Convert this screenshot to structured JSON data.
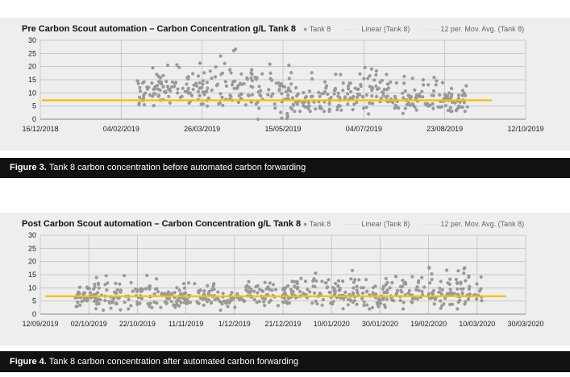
{
  "charts": [
    {
      "title": "Pre Carbon Scout automation – Carbon Concentration g/L Tank 8",
      "legend": {
        "series": "Tank 8",
        "linear": "Linear (Tank 8)",
        "mavg": "12 per. Mov. Avg. (Tank 8)"
      },
      "caption_label": "Figure 3.",
      "caption_text": "Tank 8 carbon concentration before automated carbon forwarding"
    },
    {
      "title": "Post Carbon Scout automation – Carbon Concentration g/L Tank 8",
      "legend": {
        "series": "Tank 8",
        "linear": "Linear (Tank 8)",
        "mavg": "12 per. Mov. Avg. (Tank 8)"
      },
      "caption_label": "Figure 4.",
      "caption_text": "Tank 8 carbon concentration after automated carbon forwarding"
    }
  ],
  "chart_data": [
    {
      "type": "scatter",
      "title": "Pre Carbon Scout automation – Carbon Concentration g/L Tank 8",
      "ylim": [
        0,
        30
      ],
      "yticks": [
        "0",
        "5",
        "10",
        "15",
        "20",
        "25",
        "30"
      ],
      "xticks": [
        "16/12/2018",
        "04/02/2019",
        "26/03/2019",
        "15/05/2019",
        "04/07/2019",
        "23/08/2019",
        "12/10/2019"
      ],
      "data_x_range": [
        0.2,
        0.88
      ],
      "series_name": "Tank 8",
      "trend_value": 7.2,
      "colors": {
        "points": "#999999",
        "trend": "#f2c200",
        "grid": "#bfbfbf"
      },
      "clusters": [
        {
          "x0": 0.2,
          "x1": 0.32,
          "lo": 5,
          "hi": 21,
          "mid": 12
        },
        {
          "x0": 0.32,
          "x1": 0.44,
          "lo": 5,
          "hi": 27,
          "mid": 12
        },
        {
          "x0": 0.44,
          "x1": 0.52,
          "lo": 0,
          "hi": 26,
          "mid": 9
        },
        {
          "x0": 0.52,
          "x1": 0.62,
          "lo": 3,
          "hi": 18,
          "mid": 8
        },
        {
          "x0": 0.62,
          "x1": 0.75,
          "lo": 2,
          "hi": 20,
          "mid": 10
        },
        {
          "x0": 0.75,
          "x1": 0.88,
          "lo": 3,
          "hi": 16,
          "mid": 7
        }
      ]
    },
    {
      "type": "scatter",
      "title": "Post Carbon Scout automation – Carbon Concentration g/L Tank 8",
      "ylim": [
        0,
        30
      ],
      "yticks": [
        "0",
        "5",
        "10",
        "15",
        "20",
        "25",
        "30"
      ],
      "xticks": [
        "12/09/2019",
        "02/10/2019",
        "22/10/2019",
        "11/11/2019",
        "1/12/2019",
        "21/12/2019",
        "10/01/2020",
        "30/01/2020",
        "19/02/2020",
        "10/03/2020",
        "30/03/2020"
      ],
      "data_x_range": [
        0.07,
        0.91
      ],
      "series_name": "Tank 8",
      "trend_value": 6.8,
      "colors": {
        "points": "#999999",
        "trend": "#f2c200",
        "grid": "#bfbfbf"
      },
      "clusters": [
        {
          "x0": 0.07,
          "x1": 0.25,
          "lo": 1,
          "hi": 15,
          "mid": 7
        },
        {
          "x0": 0.25,
          "x1": 0.42,
          "lo": 1,
          "hi": 12,
          "mid": 6
        },
        {
          "x0": 0.42,
          "x1": 0.62,
          "lo": 3,
          "hi": 16,
          "mid": 8
        },
        {
          "x0": 0.62,
          "x1": 0.76,
          "lo": 2,
          "hi": 18,
          "mid": 8
        },
        {
          "x0": 0.76,
          "x1": 0.91,
          "lo": 2,
          "hi": 18,
          "mid": 8
        }
      ]
    }
  ]
}
